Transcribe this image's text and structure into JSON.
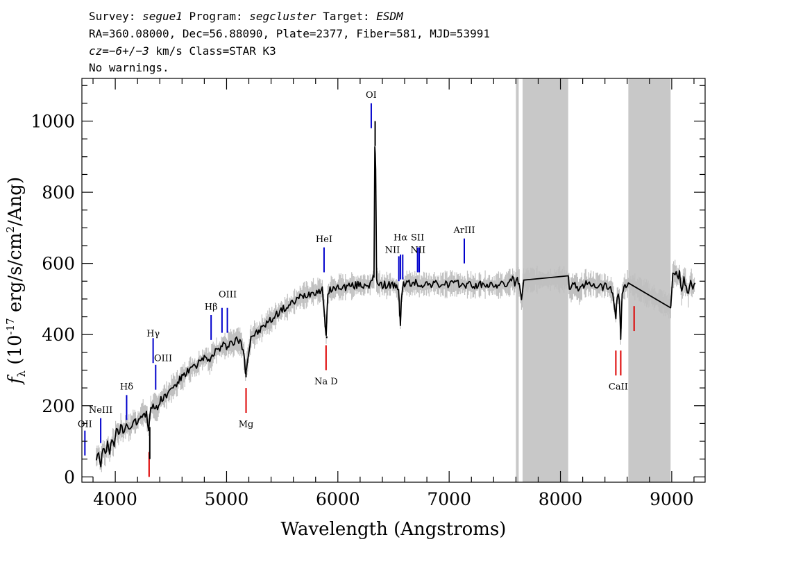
{
  "header": {
    "survey_label": "Survey:",
    "survey": "segue1",
    "program_label": "Program:",
    "program": "segcluster",
    "target_label": "Target:",
    "target": "ESDM",
    "line2": "RA=360.08000, Dec=56.88090, Plate=2377, Fiber=581, MJD=53991",
    "cz_label": "cz",
    "cz_value": "=−6+/−3",
    "cz_rest": " km/s Class=STAR K3",
    "warnings": "No warnings."
  },
  "chart_data": {
    "type": "line",
    "xlabel": "Wavelength (Angstroms)",
    "ylabel": "f",
    "ylabel_sub": "λ",
    "ylabel_rest": " (10",
    "ylabel_exp": "-17",
    "ylabel_tail": " erg/s/cm",
    "ylabel_exp2": "2",
    "ylabel_end": "/Ang)",
    "xlim": [
      3700,
      9300
    ],
    "ylim": [
      -15,
      1120
    ],
    "xticks": [
      {
        "v": 4000,
        "label": "4000"
      },
      {
        "v": 5000,
        "label": "5000"
      },
      {
        "v": 6000,
        "label": "6000"
      },
      {
        "v": 7000,
        "label": "7000"
      },
      {
        "v": 8000,
        "label": "8000"
      },
      {
        "v": 9000,
        "label": "9000"
      }
    ],
    "yticks": [
      {
        "v": 0,
        "label": "0"
      },
      {
        "v": 200,
        "label": "200"
      },
      {
        "v": 400,
        "label": "400"
      },
      {
        "v": 600,
        "label": "600"
      },
      {
        "v": 800,
        "label": "800"
      },
      {
        "v": 1000,
        "label": "1000"
      }
    ],
    "masked_regions": [
      [
        7600,
        7625
      ],
      [
        7660,
        8070
      ],
      [
        8610,
        8990
      ]
    ],
    "spectrum": [
      [
        3830,
        55
      ],
      [
        3850,
        70
      ],
      [
        3870,
        35
      ],
      [
        3890,
        80
      ],
      [
        3910,
        60
      ],
      [
        3930,
        90
      ],
      [
        3950,
        70
      ],
      [
        3970,
        100
      ],
      [
        3990,
        95
      ],
      [
        4010,
        130
      ],
      [
        4030,
        120
      ],
      [
        4050,
        140
      ],
      [
        4070,
        125
      ],
      [
        4100,
        145
      ],
      [
        4130,
        135
      ],
      [
        4160,
        160
      ],
      [
        4190,
        150
      ],
      [
        4220,
        170
      ],
      [
        4250,
        180
      ],
      [
        4280,
        175
      ],
      [
        4300,
        140
      ],
      [
        4320,
        195
      ],
      [
        4350,
        200
      ],
      [
        4380,
        190
      ],
      [
        4400,
        215
      ],
      [
        4430,
        225
      ],
      [
        4460,
        230
      ],
      [
        4490,
        240
      ],
      [
        4520,
        255
      ],
      [
        4550,
        260
      ],
      [
        4580,
        275
      ],
      [
        4610,
        280
      ],
      [
        4640,
        295
      ],
      [
        4670,
        300
      ],
      [
        4700,
        310
      ],
      [
        4730,
        305
      ],
      [
        4760,
        325
      ],
      [
        4790,
        330
      ],
      [
        4820,
        340
      ],
      [
        4850,
        320
      ],
      [
        4880,
        350
      ],
      [
        4910,
        355
      ],
      [
        4940,
        360
      ],
      [
        4970,
        370
      ],
      [
        5000,
        365
      ],
      [
        5030,
        380
      ],
      [
        5060,
        375
      ],
      [
        5090,
        385
      ],
      [
        5120,
        380
      ],
      [
        5150,
        360
      ],
      [
        5170,
        300
      ],
      [
        5190,
        330
      ],
      [
        5220,
        395
      ],
      [
        5250,
        400
      ],
      [
        5280,
        405
      ],
      [
        5310,
        415
      ],
      [
        5340,
        425
      ],
      [
        5370,
        435
      ],
      [
        5400,
        440
      ],
      [
        5430,
        450
      ],
      [
        5460,
        460
      ],
      [
        5500,
        470
      ],
      [
        5540,
        475
      ],
      [
        5580,
        485
      ],
      [
        5620,
        495
      ],
      [
        5660,
        505
      ],
      [
        5700,
        510
      ],
      [
        5740,
        515
      ],
      [
        5780,
        520
      ],
      [
        5820,
        522
      ],
      [
        5860,
        525
      ],
      [
        5880,
        460
      ],
      [
        5895,
        395
      ],
      [
        5910,
        510
      ],
      [
        5940,
        530
      ],
      [
        5980,
        528
      ],
      [
        6020,
        535
      ],
      [
        6060,
        532
      ],
      [
        6100,
        538
      ],
      [
        6140,
        535
      ],
      [
        6180,
        540
      ],
      [
        6220,
        538
      ],
      [
        6260,
        542
      ],
      [
        6290,
        540
      ],
      [
        6310,
        550
      ],
      [
        6325,
        560
      ],
      [
        6332,
        930
      ],
      [
        6340,
        870
      ],
      [
        6348,
        560
      ],
      [
        6360,
        545
      ],
      [
        6400,
        540
      ],
      [
        6440,
        538
      ],
      [
        6480,
        542
      ],
      [
        6520,
        535
      ],
      [
        6545,
        520
      ],
      [
        6556,
        460
      ],
      [
        6562,
        430
      ],
      [
        6570,
        500
      ],
      [
        6590,
        540
      ],
      [
        6620,
        545
      ],
      [
        6660,
        542
      ],
      [
        6700,
        545
      ],
      [
        6740,
        540
      ],
      [
        6780,
        543
      ],
      [
        6820,
        540
      ],
      [
        6860,
        545
      ],
      [
        6900,
        538
      ],
      [
        6940,
        542
      ],
      [
        6980,
        540
      ],
      [
        7020,
        545
      ],
      [
        7060,
        540
      ],
      [
        7100,
        543
      ],
      [
        7140,
        538
      ],
      [
        7180,
        542
      ],
      [
        7220,
        535
      ],
      [
        7260,
        540
      ],
      [
        7300,
        538
      ],
      [
        7340,
        542
      ],
      [
        7380,
        536
      ],
      [
        7420,
        540
      ],
      [
        7460,
        538
      ],
      [
        7500,
        542
      ],
      [
        7540,
        545
      ],
      [
        7570,
        555
      ],
      [
        7590,
        540
      ],
      [
        7605,
        565
      ],
      [
        7630,
        545
      ],
      [
        7650,
        490
      ],
      [
        7670,
        553
      ],
      [
        8070,
        555
      ],
      [
        8090,
        520
      ],
      [
        8110,
        535
      ],
      [
        8140,
        540
      ],
      [
        8170,
        520
      ],
      [
        8200,
        540
      ],
      [
        8230,
        545
      ],
      [
        8260,
        540
      ],
      [
        8290,
        545
      ],
      [
        8320,
        538
      ],
      [
        8350,
        542
      ],
      [
        8380,
        535
      ],
      [
        8410,
        540
      ],
      [
        8440,
        530
      ],
      [
        8470,
        520
      ],
      [
        8498,
        450
      ],
      [
        8510,
        515
      ],
      [
        8530,
        500
      ],
      [
        8542,
        390
      ],
      [
        8555,
        520
      ],
      [
        8580,
        535
      ],
      [
        8610,
        545
      ],
      [
        8990,
        478
      ],
      [
        9010,
        565
      ],
      [
        9030,
        575
      ],
      [
        9050,
        560
      ],
      [
        9070,
        570
      ],
      [
        9090,
        520
      ],
      [
        9110,
        560
      ],
      [
        9130,
        540
      ],
      [
        9150,
        510
      ],
      [
        9170,
        555
      ],
      [
        9190,
        530
      ],
      [
        9210,
        545
      ]
    ],
    "spikes": [
      [
        4310,
        50
      ],
      [
        5175,
        280
      ],
      [
        5900,
        390
      ],
      [
        6335,
        1000
      ]
    ],
    "emission_lines": [
      {
        "label": "OII",
        "x": 3727,
        "y0": 60,
        "y1": 130,
        "lx": 3727,
        "ly": 140
      },
      {
        "label": "NeIII",
        "x": 3869,
        "y0": 95,
        "y1": 165,
        "lx": 3869,
        "ly": 180
      },
      {
        "label": "Hδ",
        "x": 4102,
        "y0": 160,
        "y1": 230,
        "lx": 4102,
        "ly": 245
      },
      {
        "label": "Hγ",
        "x": 4340,
        "y0": 320,
        "y1": 390,
        "lx": 4340,
        "ly": 395
      },
      {
        "label": "OIII",
        "x": 4363,
        "y0": 245,
        "y1": 315,
        "lx": 4430,
        "ly": 325
      },
      {
        "label": "Hβ",
        "x": 4861,
        "y0": 385,
        "y1": 455,
        "lx": 4861,
        "ly": 470
      },
      {
        "label": "OIII",
        "x": 4959,
        "y0": 405,
        "y1": 475,
        "lx": 5010,
        "ly": 505
      },
      {
        "label": "OIII",
        "x": 5007,
        "y0": 405,
        "y1": 475,
        "lx": "",
        "ly": ""
      },
      {
        "label": "HeI",
        "x": 5876,
        "y0": 575,
        "y1": 645,
        "lx": 5876,
        "ly": 660
      },
      {
        "label": "OI",
        "x": 6300,
        "y0": 980,
        "y1": 1050,
        "lx": 6300,
        "ly": 1065
      },
      {
        "label": "NII",
        "x": 6548,
        "y0": 550,
        "y1": 620,
        "lx": 6490,
        "ly": 630
      },
      {
        "label": "Hα",
        "x": 6563,
        "y0": 555,
        "y1": 625,
        "lx": 6563,
        "ly": 665
      },
      {
        "label": "NII",
        "x": 6583,
        "y0": 555,
        "y1": 625,
        "lx": 6720,
        "ly": 630
      },
      {
        "label": "SII",
        "x": 6716,
        "y0": 575,
        "y1": 645,
        "lx": 6716,
        "ly": 665
      },
      {
        "label": "SII",
        "x": 6731,
        "y0": 575,
        "y1": 645,
        "lx": "",
        "ly": ""
      },
      {
        "label": "ArIII",
        "x": 7136,
        "y0": 600,
        "y1": 670,
        "lx": 7136,
        "ly": 685
      }
    ],
    "absorption_lines": [
      {
        "label": "",
        "x": 4304,
        "y0": 0,
        "y1": 70,
        "lx": "",
        "ly": ""
      },
      {
        "label": "Mg",
        "x": 5175,
        "y0": 180,
        "y1": 250,
        "lx": 5175,
        "ly": 140
      },
      {
        "label": "Na D",
        "x": 5894,
        "y0": 300,
        "y1": 370,
        "lx": 5894,
        "ly": 260
      },
      {
        "label": "CaII",
        "x": 8498,
        "y0": 285,
        "y1": 355,
        "lx": 8520,
        "ly": 245
      },
      {
        "label": "CaII",
        "x": 8542,
        "y0": 285,
        "y1": 355,
        "lx": "",
        "ly": ""
      },
      {
        "label": "",
        "x": 8662,
        "y0": 410,
        "y1": 480,
        "lx": "",
        "ly": ""
      }
    ],
    "colors": {
      "emission": "#0000cc",
      "absorption": "#dd0000",
      "mask": "#c8c8c8",
      "error": "#c0c0c0",
      "spectrum": "#000000"
    }
  }
}
